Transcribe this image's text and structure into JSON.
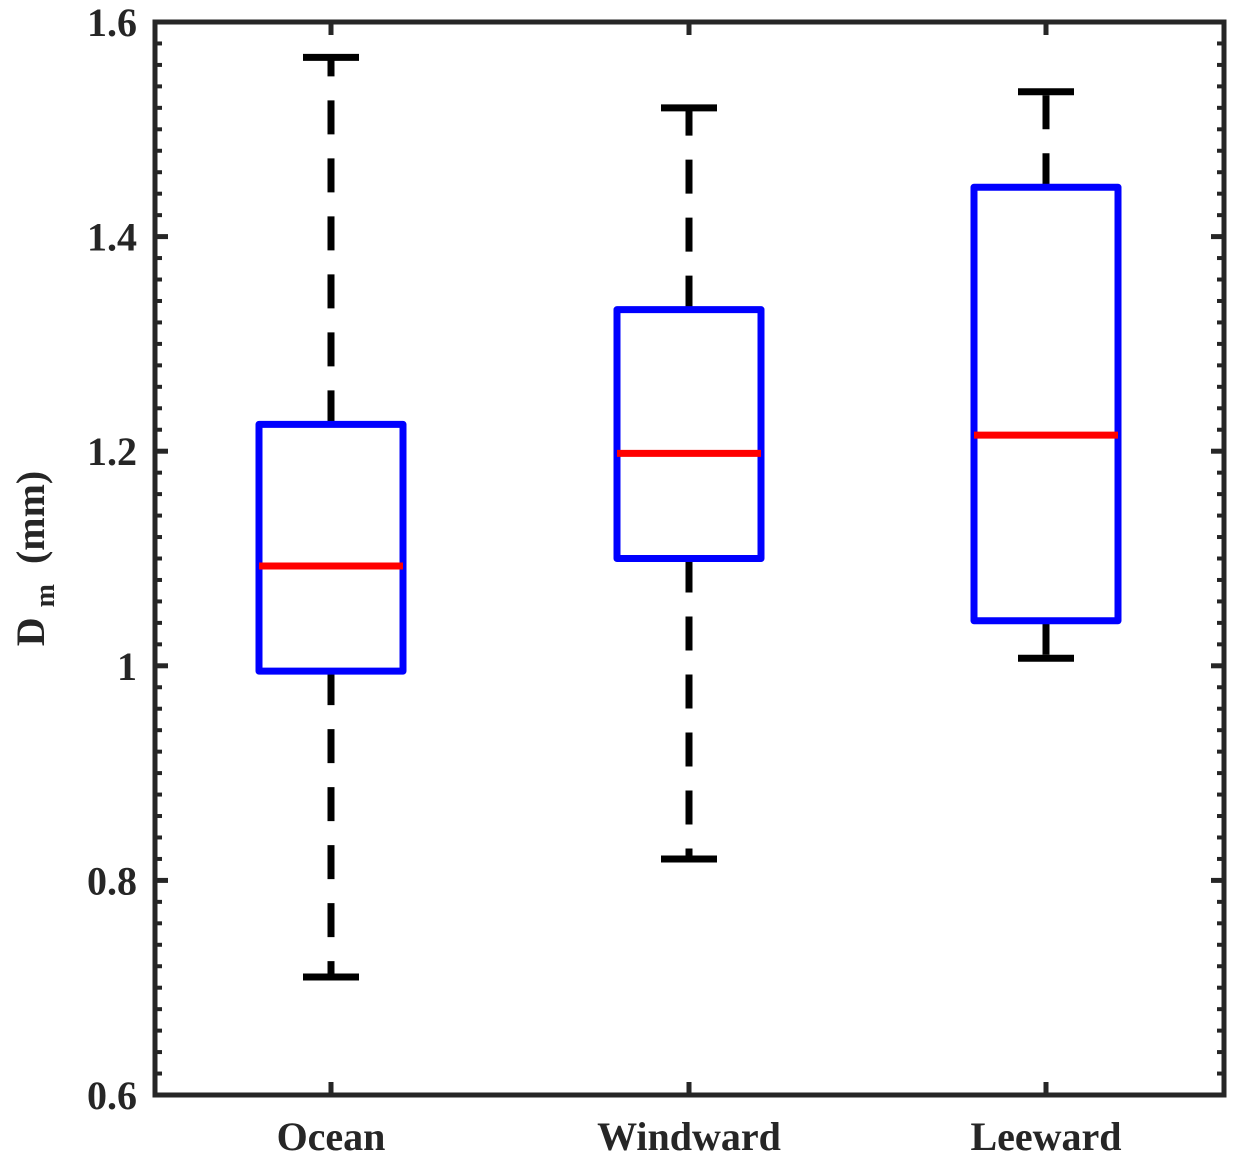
{
  "chart_data": {
    "type": "box",
    "categories": [
      "Ocean",
      "Windward",
      "Leeward"
    ],
    "boxes": [
      {
        "category": "Ocean",
        "whisker_low": 0.71,
        "q1": 0.995,
        "median": 1.093,
        "q3": 1.225,
        "whisker_high": 1.567
      },
      {
        "category": "Windward",
        "whisker_low": 0.82,
        "q1": 1.1,
        "median": 1.198,
        "q3": 1.332,
        "whisker_high": 1.52
      },
      {
        "category": "Leeward",
        "whisker_low": 1.007,
        "q1": 1.042,
        "median": 1.215,
        "q3": 1.446,
        "whisker_high": 1.535
      }
    ],
    "ylabel": {
      "main": "D",
      "subscript": "m",
      "unit": "(mm)"
    },
    "ylim": [
      0.6,
      1.6
    ],
    "yticks": [
      0.6,
      0.8,
      1,
      1.2,
      1.4,
      1.6
    ],
    "ytick_labels": [
      "0.6",
      "0.8",
      "1",
      "1.2",
      "1.4",
      "1.6"
    ],
    "colors": {
      "box": "#0000ff",
      "median": "#ff0000",
      "whisker": "#000000",
      "axis": "#262626"
    }
  }
}
